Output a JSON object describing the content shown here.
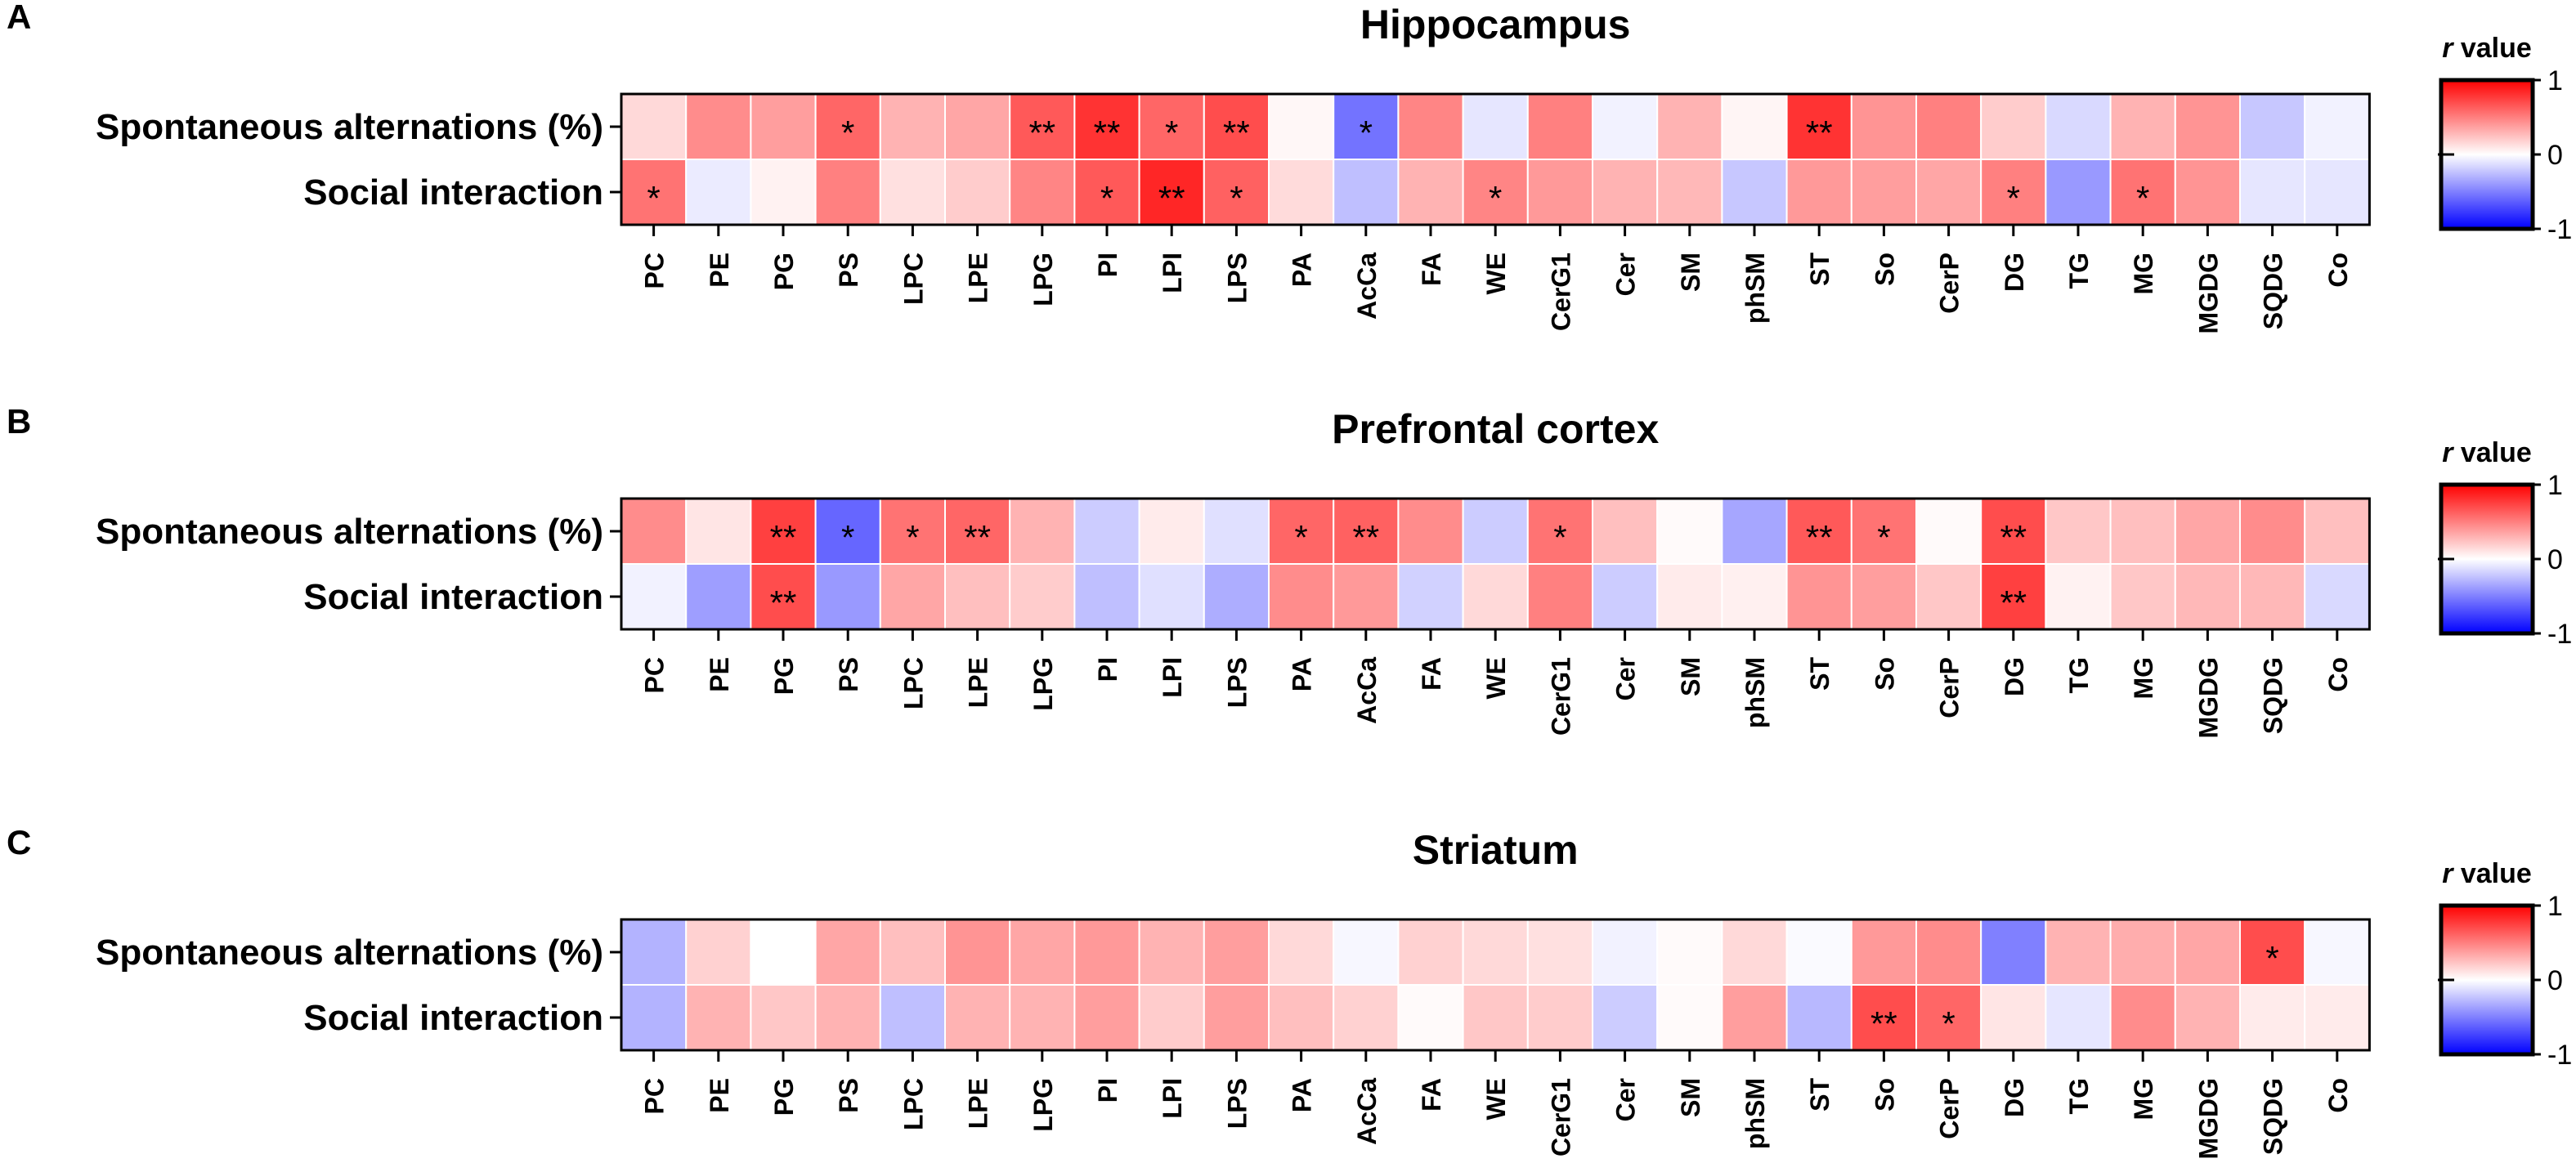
{
  "figure": {
    "colorbar_label": "r value",
    "colorbar_ticks": [
      "1",
      "0",
      "-1"
    ]
  },
  "chart_data": [
    {
      "type": "heatmap",
      "panel_label": "A",
      "title": "Hippocampus",
      "rows": [
        "Spontaneous alternations (%)",
        "Social interaction"
      ],
      "columns": [
        "PC",
        "PE",
        "PG",
        "PS",
        "LPC",
        "LPE",
        "LPG",
        "PI",
        "LPI",
        "LPS",
        "PA",
        "AcCa",
        "FA",
        "WE",
        "CerG1",
        "Cer",
        "SM",
        "phSM",
        "ST",
        "So",
        "CerP",
        "DG",
        "TG",
        "MG",
        "MGDG",
        "SQDG",
        "Co"
      ],
      "values": [
        [
          0.15,
          0.45,
          0.38,
          0.6,
          0.3,
          0.35,
          0.65,
          0.8,
          0.6,
          0.7,
          0.03,
          -0.55,
          0.48,
          -0.1,
          0.5,
          -0.05,
          0.3,
          0.04,
          0.8,
          0.42,
          0.5,
          0.2,
          -0.15,
          0.3,
          0.42,
          -0.22,
          -0.05
        ],
        [
          0.55,
          -0.08,
          0.05,
          0.5,
          0.12,
          0.2,
          0.48,
          0.65,
          0.85,
          0.62,
          0.14,
          -0.25,
          0.3,
          0.48,
          0.4,
          0.3,
          0.28,
          -0.22,
          0.4,
          0.38,
          0.35,
          0.5,
          -0.4,
          0.55,
          0.42,
          -0.1,
          -0.1
        ]
      ],
      "significance": [
        [
          "",
          "",
          "",
          "*",
          "",
          "",
          "**",
          "**",
          "*",
          "**",
          "",
          "*",
          "",
          "",
          "",
          "",
          "",
          "",
          "**",
          "",
          "",
          "",
          "",
          "",
          "",
          "",
          ""
        ],
        [
          "*",
          "",
          "",
          "",
          "",
          "",
          "",
          "*",
          "**",
          "*",
          "",
          "",
          "",
          "*",
          "",
          "",
          "",
          "",
          "",
          "",
          "",
          "*",
          "",
          "*",
          "",
          "",
          ""
        ]
      ],
      "color_range": [
        -1,
        1
      ]
    },
    {
      "type": "heatmap",
      "panel_label": "B",
      "title": "Prefrontal cortex",
      "rows": [
        "Spontaneous alternations (%)",
        "Social interaction"
      ],
      "columns": [
        "PC",
        "PE",
        "PG",
        "PS",
        "LPC",
        "LPE",
        "LPG",
        "PI",
        "LPI",
        "LPS",
        "PA",
        "AcCa",
        "FA",
        "WE",
        "CerG1",
        "Cer",
        "SM",
        "phSM",
        "ST",
        "So",
        "CerP",
        "DG",
        "TG",
        "MG",
        "MGDG",
        "SQDG",
        "Co"
      ],
      "values": [
        [
          0.45,
          0.1,
          0.75,
          -0.6,
          0.55,
          0.6,
          0.3,
          -0.2,
          0.08,
          -0.12,
          0.6,
          0.62,
          0.45,
          -0.2,
          0.55,
          0.25,
          0.02,
          -0.35,
          0.65,
          0.55,
          0.02,
          0.7,
          0.22,
          0.25,
          0.35,
          0.45,
          0.25
        ],
        [
          -0.05,
          -0.38,
          0.7,
          -0.4,
          0.35,
          0.25,
          0.2,
          -0.25,
          -0.12,
          -0.32,
          0.45,
          0.4,
          -0.18,
          0.15,
          0.5,
          -0.2,
          0.08,
          0.06,
          0.42,
          0.38,
          0.22,
          0.75,
          0.05,
          0.22,
          0.28,
          0.28,
          -0.15
        ]
      ],
      "significance": [
        [
          "",
          "",
          "**",
          "*",
          "*",
          "**",
          "",
          "",
          "",
          "",
          "*",
          "**",
          "",
          "",
          "*",
          "",
          "",
          "",
          "**",
          "*",
          "",
          "**",
          "",
          "",
          "",
          "",
          ""
        ],
        [
          "",
          "",
          "**",
          "",
          "",
          "",
          "",
          "",
          "",
          "",
          "",
          "",
          "",
          "",
          "",
          "",
          "",
          "",
          "",
          "",
          "",
          "**",
          "",
          "",
          "",
          "",
          ""
        ]
      ],
      "color_range": [
        -1,
        1
      ]
    },
    {
      "type": "heatmap",
      "panel_label": "C",
      "title": "Striatum",
      "rows": [
        "Spontaneous alternations (%)",
        "Social interaction"
      ],
      "columns": [
        "PC",
        "PE",
        "PG",
        "PS",
        "LPC",
        "LPE",
        "LPG",
        "PI",
        "LPI",
        "LPS",
        "PA",
        "AcCa",
        "FA",
        "WE",
        "CerG1",
        "Cer",
        "SM",
        "phSM",
        "ST",
        "So",
        "CerP",
        "DG",
        "TG",
        "MG",
        "MGDG",
        "SQDG",
        "Co"
      ],
      "values": [
        [
          -0.3,
          0.18,
          0.0,
          0.35,
          0.25,
          0.42,
          0.35,
          0.4,
          0.3,
          0.38,
          0.15,
          -0.03,
          0.18,
          0.15,
          0.12,
          -0.05,
          0.02,
          0.15,
          -0.02,
          0.4,
          0.45,
          -0.5,
          0.3,
          0.32,
          0.35,
          0.7,
          -0.03
        ],
        [
          -0.3,
          0.3,
          0.22,
          0.3,
          -0.25,
          0.3,
          0.3,
          0.38,
          0.2,
          0.38,
          0.25,
          0.18,
          0.02,
          0.22,
          0.2,
          -0.2,
          0.02,
          0.38,
          -0.28,
          0.7,
          0.6,
          0.1,
          -0.1,
          0.45,
          0.3,
          0.08,
          0.08
        ]
      ],
      "significance": [
        [
          "",
          "",
          "",
          "",
          "",
          "",
          "",
          "",
          "",
          "",
          "",
          "",
          "",
          "",
          "",
          "",
          "",
          "",
          "",
          "",
          "",
          "",
          "",
          "",
          "",
          "*",
          ""
        ],
        [
          "",
          "",
          "",
          "",
          "",
          "",
          "",
          "",
          "",
          "",
          "",
          "",
          "",
          "",
          "",
          "",
          "",
          "",
          "",
          "**",
          "*",
          "",
          "",
          "",
          "",
          "",
          ""
        ]
      ],
      "color_range": [
        -1,
        1
      ]
    }
  ]
}
